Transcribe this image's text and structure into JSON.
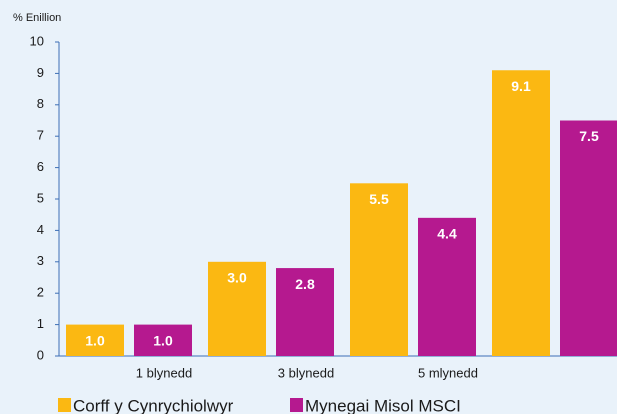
{
  "chart_data": {
    "type": "bar",
    "y_axis_label": "% Enillion",
    "categories": [
      "1 blynedd",
      "3 blynedd",
      "5 mlynedd",
      null
    ],
    "series": [
      {
        "name": "Corff y Cynrychiolwyr",
        "color": "#fbb812",
        "values": [
          1.0,
          3.0,
          5.5,
          9.1
        ],
        "value_labels": [
          "1.0",
          "3.0",
          "5.5",
          "9.1"
        ]
      },
      {
        "name": "Mynegai Misol MSCI",
        "color": "#b5198f",
        "values": [
          1.0,
          2.8,
          4.4,
          7.5
        ],
        "value_labels": [
          "1.0",
          "2.8",
          "4.4",
          "7.5"
        ]
      }
    ],
    "ylim": [
      0,
      10
    ],
    "yticks": [
      0,
      1,
      2,
      3,
      4,
      5,
      6,
      7,
      8,
      9,
      10
    ]
  }
}
